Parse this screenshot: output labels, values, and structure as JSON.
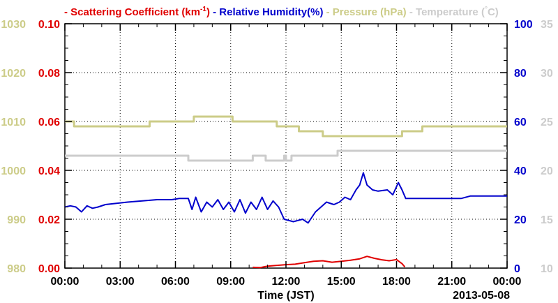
{
  "chart_data": {
    "type": "line",
    "legend_placement": "top",
    "grid": true,
    "date_label": "2013-05-08",
    "xlabel": "Time (JST)",
    "x_ticks": [
      "00:00",
      "03:00",
      "06:00",
      "09:00",
      "12:00",
      "15:00",
      "18:00",
      "21:00",
      "00:00"
    ],
    "x_range_hours": [
      0,
      24
    ],
    "series": [
      {
        "name": "Scattering Coefficient (km",
        "name_sup": "-1",
        "name_close": ")",
        "color": "#e00000",
        "axis": "left_inner",
        "axis_range": [
          0.0,
          0.1
        ],
        "axis_ticks": [
          "0.00",
          "0.02",
          "0.04",
          "0.06",
          "0.08",
          "0.10"
        ],
        "points": [
          [
            10.2,
            0.0003
          ],
          [
            10.6,
            0.0002
          ],
          [
            11.0,
            0.0008
          ],
          [
            11.5,
            0.0011
          ],
          [
            12.0,
            0.0014
          ],
          [
            12.5,
            0.0016
          ],
          [
            13.0,
            0.0022
          ],
          [
            13.5,
            0.0028
          ],
          [
            14.0,
            0.003
          ],
          [
            14.5,
            0.0024
          ],
          [
            15.0,
            0.0028
          ],
          [
            15.5,
            0.0032
          ],
          [
            16.0,
            0.0038
          ],
          [
            16.4,
            0.0048
          ],
          [
            16.8,
            0.004
          ],
          [
            17.2,
            0.0034
          ],
          [
            17.6,
            0.003
          ],
          [
            18.0,
            0.0035
          ],
          [
            18.3,
            0.0018
          ],
          [
            18.45,
            0.0005
          ]
        ]
      },
      {
        "name": "Relative Humidity(%)",
        "color": "#0000cc",
        "axis": "right_inner",
        "axis_range": [
          0,
          100
        ],
        "axis_ticks": [
          "0",
          "20",
          "40",
          "60",
          "80",
          "100"
        ],
        "points": [
          [
            0,
            25
          ],
          [
            0.3,
            25.5
          ],
          [
            0.6,
            25
          ],
          [
            0.9,
            23
          ],
          [
            1.2,
            25.5
          ],
          [
            1.5,
            24.5
          ],
          [
            1.8,
            25
          ],
          [
            2.2,
            26
          ],
          [
            2.8,
            26.5
          ],
          [
            3.4,
            27
          ],
          [
            4.2,
            27.5
          ],
          [
            5.0,
            28
          ],
          [
            5.8,
            28
          ],
          [
            6.2,
            28.5
          ],
          [
            6.7,
            28.5
          ],
          [
            6.9,
            24
          ],
          [
            7.1,
            29
          ],
          [
            7.4,
            23
          ],
          [
            7.7,
            27
          ],
          [
            8.0,
            25
          ],
          [
            8.3,
            28
          ],
          [
            8.6,
            24
          ],
          [
            8.9,
            27
          ],
          [
            9.2,
            23
          ],
          [
            9.5,
            28
          ],
          [
            9.8,
            22.5
          ],
          [
            10.1,
            27
          ],
          [
            10.4,
            24
          ],
          [
            10.7,
            29
          ],
          [
            11.0,
            24
          ],
          [
            11.3,
            27.5
          ],
          [
            11.6,
            25
          ],
          [
            11.9,
            20
          ],
          [
            12.4,
            19
          ],
          [
            12.9,
            20
          ],
          [
            13.2,
            18.5
          ],
          [
            13.6,
            23
          ],
          [
            13.9,
            25
          ],
          [
            14.2,
            27
          ],
          [
            14.6,
            26
          ],
          [
            14.9,
            27
          ],
          [
            15.2,
            29
          ],
          [
            15.5,
            28
          ],
          [
            15.8,
            32
          ],
          [
            16.0,
            34
          ],
          [
            16.2,
            39
          ],
          [
            16.4,
            34
          ],
          [
            16.7,
            32
          ],
          [
            17.0,
            31.5
          ],
          [
            17.5,
            32
          ],
          [
            17.8,
            30
          ],
          [
            18.1,
            35
          ],
          [
            18.3,
            32
          ],
          [
            18.5,
            28.5
          ],
          [
            20,
            28.5
          ],
          [
            21.5,
            28.5
          ],
          [
            22,
            29.5
          ],
          [
            24,
            29.5
          ]
        ]
      },
      {
        "name": "Pressure (hPa)",
        "color": "#cccc88",
        "axis": "left_outer",
        "axis_range": [
          980,
          1030
        ],
        "axis_ticks": [
          "980",
          "990",
          "1000",
          "1010",
          "1020",
          "1030"
        ],
        "points": [
          [
            0,
            1010
          ],
          [
            0.5,
            1010
          ],
          [
            0.5,
            1009
          ],
          [
            4.6,
            1009
          ],
          [
            4.6,
            1010
          ],
          [
            7.0,
            1010
          ],
          [
            7.0,
            1011
          ],
          [
            9.1,
            1011
          ],
          [
            9.1,
            1010
          ],
          [
            11.5,
            1010
          ],
          [
            11.5,
            1009
          ],
          [
            12.7,
            1009
          ],
          [
            12.7,
            1008
          ],
          [
            14.0,
            1008
          ],
          [
            14.0,
            1007
          ],
          [
            18.3,
            1007
          ],
          [
            18.3,
            1008
          ],
          [
            19.4,
            1008
          ],
          [
            19.4,
            1009
          ],
          [
            24,
            1009
          ]
        ]
      },
      {
        "name": "Temperature (",
        "name_deg": "°",
        "name_close": "C)",
        "color": "#cccccc",
        "axis": "right_outer",
        "axis_range": [
          10,
          35
        ],
        "axis_ticks": [
          "10",
          "15",
          "20",
          "25",
          "30",
          "35"
        ],
        "points": [
          [
            0,
            21.5
          ],
          [
            6.7,
            21.5
          ],
          [
            6.7,
            21
          ],
          [
            10.2,
            21
          ],
          [
            10.2,
            21.5
          ],
          [
            10.9,
            21.5
          ],
          [
            10.9,
            21
          ],
          [
            11.9,
            21
          ],
          [
            11.9,
            21.5
          ],
          [
            12.0,
            21.5
          ],
          [
            12.0,
            21
          ],
          [
            12.3,
            21
          ],
          [
            12.3,
            21.5
          ],
          [
            14.8,
            21.5
          ],
          [
            14.8,
            22
          ],
          [
            24,
            22
          ]
        ]
      }
    ]
  }
}
